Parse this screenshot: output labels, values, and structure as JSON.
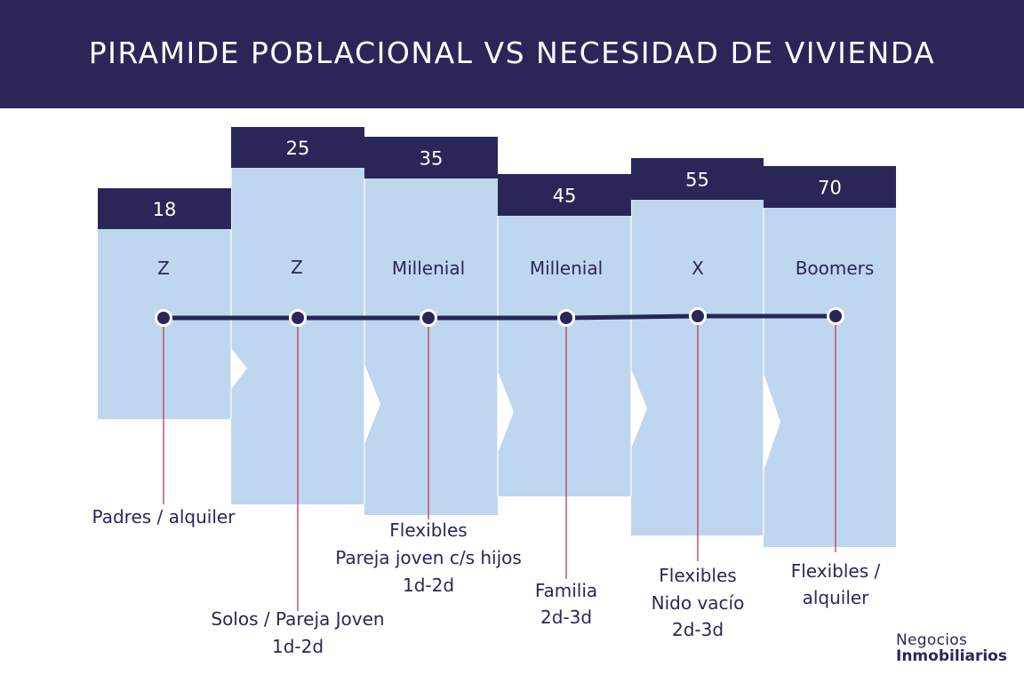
{
  "title": "PIRAMIDE POBLACIONAL VS NECESIDAD DE VIVIENDA",
  "colors": {
    "header": "#2b2658",
    "column": "#bfd7ee",
    "age_box": "#2b2658",
    "timeline": "#2b2658",
    "connector": "#c0395a",
    "text": "#2b2658"
  },
  "columns": [
    {
      "age": "18",
      "generation": "Z",
      "housing": [
        "Padres / alquiler"
      ]
    },
    {
      "age": "25",
      "generation": "Z",
      "housing": [
        "Solos / Pareja Joven",
        "1d-2d"
      ]
    },
    {
      "age": "35",
      "generation": "Millenial",
      "housing": [
        "Flexibles",
        "Pareja joven c/s hijos",
        "1d-2d"
      ]
    },
    {
      "age": "45",
      "generation": "Millenial",
      "housing": [
        "Familia",
        "2d-3d"
      ]
    },
    {
      "age": "55",
      "generation": "X",
      "housing": [
        "Flexibles",
        "Nido vacío",
        "2d-3d"
      ]
    },
    {
      "age": "70",
      "generation": "Boomers",
      "housing": [
        "Flexibles /",
        "alquiler"
      ]
    }
  ],
  "brand": {
    "line1": "Negocios",
    "line2": "Inmobiliarios"
  }
}
